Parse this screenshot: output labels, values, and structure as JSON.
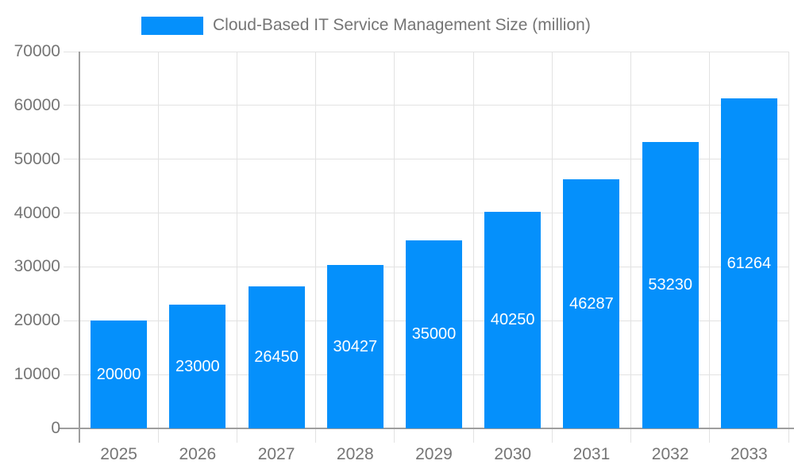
{
  "chart_data": {
    "type": "bar",
    "title": "Cloud-Based IT Service Management Size (million)",
    "legend_entries": [
      "Cloud-Based IT Service Management Size (million)"
    ],
    "legend_position": "top",
    "categories": [
      "2025",
      "2026",
      "2027",
      "2028",
      "2029",
      "2030",
      "2031",
      "2032",
      "2033"
    ],
    "values": [
      20000,
      23000,
      26450,
      30427,
      35000,
      40250,
      46287,
      53230,
      61264
    ],
    "bar_value_labels": [
      "20000",
      "23000",
      "26450",
      "30427",
      "35000",
      "40250",
      "46287",
      "53230",
      "61264"
    ],
    "xlabel": "",
    "ylabel": "",
    "ylim": [
      0,
      70000
    ],
    "y_ticks": [
      0,
      10000,
      20000,
      30000,
      40000,
      50000,
      60000,
      70000
    ],
    "y_tick_labels": [
      "0",
      "10000",
      "20000",
      "30000",
      "40000",
      "50000",
      "60000",
      "70000"
    ],
    "grid": true
  },
  "colors": {
    "bar": "#0590fb",
    "grid": "#e2e2e2",
    "axis": "#9e9e9e",
    "text": "#757575",
    "bar_label": "#ffffff",
    "background": "#ffffff"
  }
}
